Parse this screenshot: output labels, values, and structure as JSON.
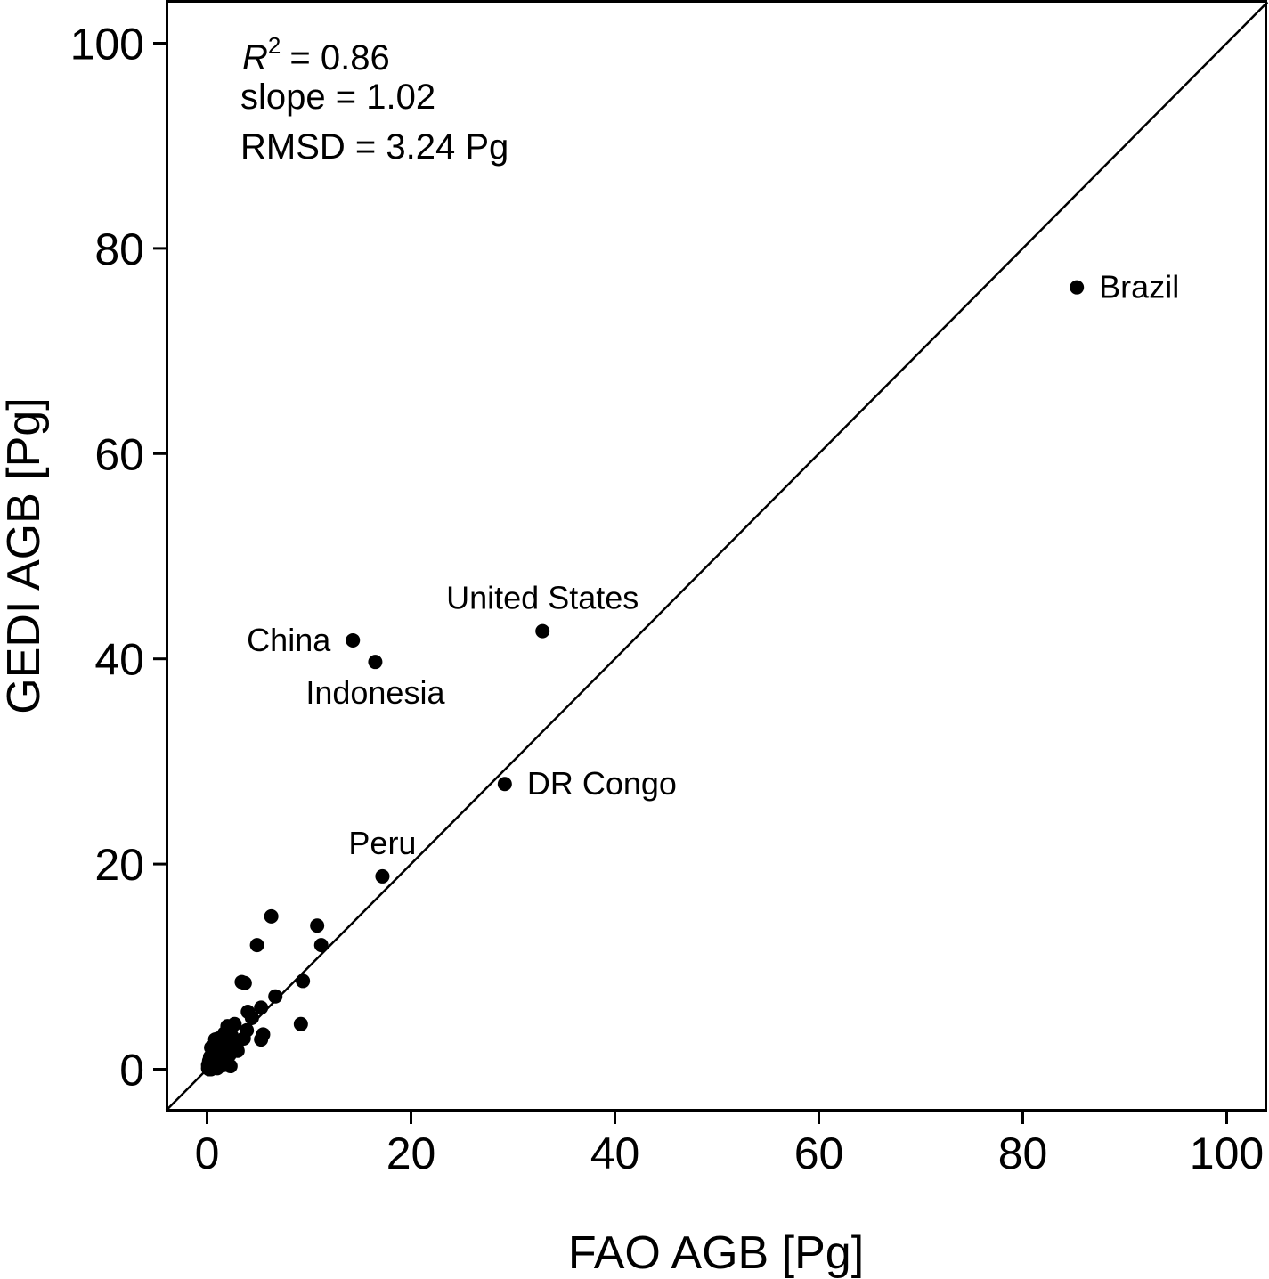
{
  "chart_data": {
    "type": "scatter",
    "xlabel": "FAO AGB [Pg]",
    "ylabel": "GEDI AGB [Pg]",
    "xlim": [
      -4,
      104
    ],
    "ylim": [
      -4,
      104
    ],
    "xticks": [
      "0",
      "20",
      "40",
      "60",
      "80",
      "100"
    ],
    "yticks": [
      "0",
      "20",
      "40",
      "60",
      "80",
      "100"
    ],
    "reference_line": "1:1",
    "grid": false,
    "stats": {
      "r2_label": "R",
      "r2_superscript": "2",
      "r2_value": "= 0.86",
      "slope": "slope = 1.02",
      "rmsd": "RMSD = 3.24 Pg"
    },
    "labeled_points": [
      {
        "label": "Brazil",
        "x": 85.3,
        "y": 76.2,
        "label_pos": "right"
      },
      {
        "label": "United States",
        "x": 32.9,
        "y": 42.7,
        "label_pos": "above"
      },
      {
        "label": "China",
        "x": 14.3,
        "y": 41.8,
        "label_pos": "left"
      },
      {
        "label": "Indonesia",
        "x": 16.5,
        "y": 39.7,
        "label_pos": "below"
      },
      {
        "label": "DR Congo",
        "x": 29.2,
        "y": 27.8,
        "label_pos": "right"
      },
      {
        "label": "Peru",
        "x": 17.2,
        "y": 18.8,
        "label_pos": "above-left"
      }
    ],
    "points": [
      {
        "x": 6.3,
        "y": 14.9
      },
      {
        "x": 10.8,
        "y": 14.0
      },
      {
        "x": 4.9,
        "y": 12.1
      },
      {
        "x": 11.2,
        "y": 12.1
      },
      {
        "x": 3.4,
        "y": 8.5
      },
      {
        "x": 3.7,
        "y": 8.4
      },
      {
        "x": 9.4,
        "y": 8.6
      },
      {
        "x": 6.7,
        "y": 7.1
      },
      {
        "x": 5.3,
        "y": 6.0
      },
      {
        "x": 4.0,
        "y": 5.6
      },
      {
        "x": 4.4,
        "y": 5.0
      },
      {
        "x": 9.2,
        "y": 4.4
      },
      {
        "x": 2.7,
        "y": 4.4
      },
      {
        "x": 2.0,
        "y": 4.2
      },
      {
        "x": 3.9,
        "y": 3.8
      },
      {
        "x": 5.5,
        "y": 3.4
      },
      {
        "x": 5.3,
        "y": 2.9
      },
      {
        "x": 3.6,
        "y": 3.0
      },
      {
        "x": 2.4,
        "y": 3.3
      },
      {
        "x": 1.7,
        "y": 3.5
      },
      {
        "x": 1.1,
        "y": 3.0
      },
      {
        "x": 0.8,
        "y": 2.9
      },
      {
        "x": 1.5,
        "y": 2.5
      },
      {
        "x": 2.1,
        "y": 2.6
      },
      {
        "x": 2.9,
        "y": 2.3
      },
      {
        "x": 0.4,
        "y": 2.1
      },
      {
        "x": 3.0,
        "y": 1.8
      },
      {
        "x": 1.8,
        "y": 1.9
      },
      {
        "x": 1.2,
        "y": 1.6
      },
      {
        "x": 0.7,
        "y": 1.4
      },
      {
        "x": 2.2,
        "y": 1.4
      },
      {
        "x": 0.3,
        "y": 1.2
      },
      {
        "x": 1.4,
        "y": 1.1
      },
      {
        "x": 0.9,
        "y": 1.0
      },
      {
        "x": 0.2,
        "y": 0.8
      },
      {
        "x": 0.5,
        "y": 0.6
      },
      {
        "x": 1.1,
        "y": 0.5
      },
      {
        "x": 1.6,
        "y": 0.4
      },
      {
        "x": 0.1,
        "y": 0.4
      },
      {
        "x": 0.3,
        "y": 0.3
      },
      {
        "x": 2.3,
        "y": 0.3
      },
      {
        "x": 0.6,
        "y": 0.2
      },
      {
        "x": 0.1,
        "y": 0.1
      },
      {
        "x": 0.2,
        "y": 0.0
      },
      {
        "x": 0.4,
        "y": 0.0
      },
      {
        "x": 1.0,
        "y": 0.1
      },
      {
        "x": 0.8,
        "y": 0.4
      },
      {
        "x": 1.9,
        "y": 2.0
      },
      {
        "x": 2.6,
        "y": 2.8
      }
    ]
  }
}
